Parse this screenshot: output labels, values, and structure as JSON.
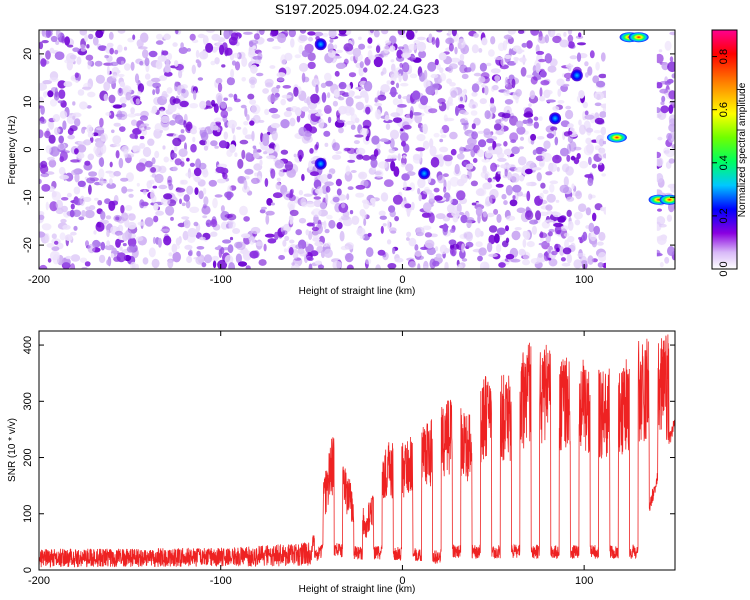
{
  "figure": {
    "title": "S197.2025.094.02.24.G23"
  },
  "chart_data": [
    {
      "type": "heatmap",
      "title": "S197.2025.094.02.24.G23",
      "xlabel": "Height of straight line (km)",
      "ylabel": "Frequency (Hz)",
      "xlim": [
        -200,
        150
      ],
      "ylim": [
        -25,
        25
      ],
      "x_ticks": [
        -200,
        -100,
        0,
        100
      ],
      "y_ticks": [
        -20,
        -10,
        0,
        10,
        20
      ],
      "grid": false,
      "colorbar": {
        "label": "Normalized spectral amplitude",
        "range": [
          0.0,
          0.9
        ],
        "ticks": [
          0.0,
          0.2,
          0.4,
          0.6,
          0.8
        ],
        "colors": [
          "#ffffff",
          "#c8a0f0",
          "#7a00d0",
          "#0000ff",
          "#00c8ff",
          "#00ff60",
          "#a0ff00",
          "#ffff00",
          "#ff8000",
          "#ff0000",
          "#ff00a0"
        ]
      },
      "no_data_region": {
        "x": [
          112,
          140
        ]
      },
      "hotspots": [
        {
          "x": 125,
          "y": 23.5,
          "value": 0.9
        },
        {
          "x": 130,
          "y": 23.5,
          "value": 0.7
        },
        {
          "x": 141,
          "y": -10.5,
          "value": 0.6
        },
        {
          "x": 147,
          "y": -10.5,
          "value": 0.5
        },
        {
          "x": 118,
          "y": 2.5,
          "value": 0.55
        },
        {
          "x": 96,
          "y": 15.5,
          "value": 0.3
        },
        {
          "x": 84,
          "y": 6.5,
          "value": 0.25
        },
        {
          "x": 12,
          "y": -5,
          "value": 0.2
        },
        {
          "x": -45,
          "y": 22,
          "value": 0.15
        },
        {
          "x": -45,
          "y": -3,
          "value": 0.15
        }
      ]
    },
    {
      "type": "line",
      "xlabel": "Height of straight line (km)",
      "ylabel": "SNR (10 * v/v)",
      "xlim": [
        -200,
        150
      ],
      "ylim": [
        0,
        425
      ],
      "x_ticks": [
        -200,
        -100,
        0,
        100
      ],
      "y_ticks": [
        0,
        100,
        200,
        300,
        400
      ],
      "grid": false,
      "series": [
        {
          "color": "#ee2222",
          "envelope": [
            {
              "x": -200,
              "min": 5,
              "max": 38
            },
            {
              "x": -150,
              "min": 5,
              "max": 38
            },
            {
              "x": -100,
              "min": 6,
              "max": 40
            },
            {
              "x": -70,
              "min": 6,
              "max": 45
            },
            {
              "x": -50,
              "min": 8,
              "max": 50
            },
            {
              "x": -45,
              "min": 20,
              "max": 130
            },
            {
              "x": -38,
              "min": 25,
              "max": 250
            },
            {
              "x": -30,
              "min": 20,
              "max": 170
            },
            {
              "x": -20,
              "min": 15,
              "max": 100
            },
            {
              "x": -10,
              "min": 20,
              "max": 230
            },
            {
              "x": 0,
              "min": 15,
              "max": 230
            },
            {
              "x": 10,
              "min": 15,
              "max": 250
            },
            {
              "x": 20,
              "min": 10,
              "max": 280
            },
            {
              "x": 25,
              "min": 20,
              "max": 310
            },
            {
              "x": 35,
              "min": 20,
              "max": 280
            },
            {
              "x": 45,
              "min": 20,
              "max": 350
            },
            {
              "x": 60,
              "min": 20,
              "max": 350
            },
            {
              "x": 70,
              "min": 20,
              "max": 410
            },
            {
              "x": 80,
              "min": 20,
              "max": 400
            },
            {
              "x": 90,
              "min": 20,
              "max": 380
            },
            {
              "x": 100,
              "min": 20,
              "max": 380
            },
            {
              "x": 110,
              "min": 20,
              "max": 360
            },
            {
              "x": 120,
              "min": 20,
              "max": 360
            },
            {
              "x": 130,
              "min": 20,
              "max": 415
            },
            {
              "x": 140,
              "min": 150,
              "max": 420
            },
            {
              "x": 150,
              "min": 250,
              "max": 420
            }
          ]
        }
      ]
    }
  ]
}
